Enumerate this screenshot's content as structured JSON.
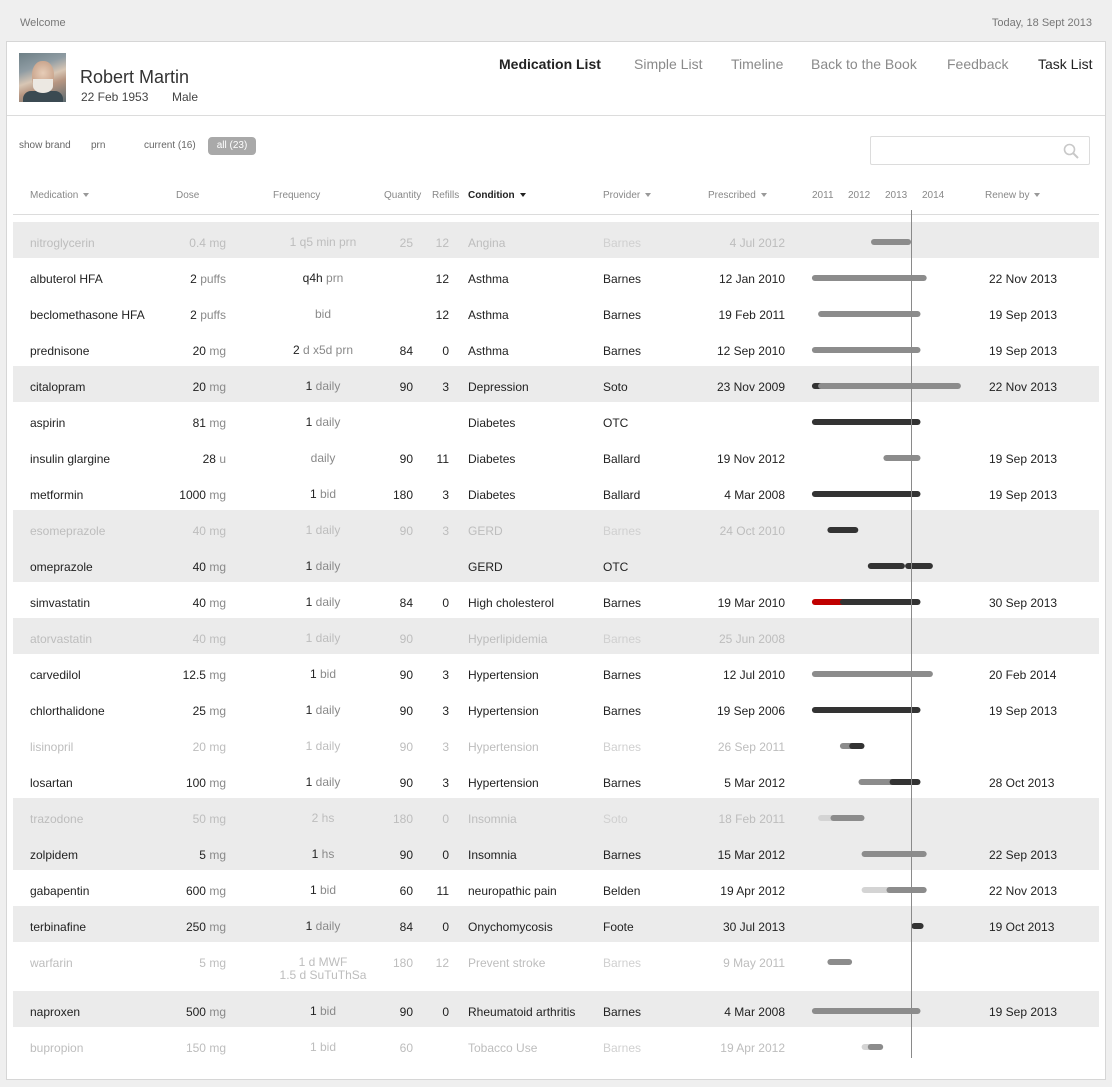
{
  "topbar": {
    "welcome": "Welcome",
    "today": "Today, 18 Sept 2013"
  },
  "patient": {
    "name": "Robert Martin",
    "dob": "22 Feb 1953",
    "sex": "Male"
  },
  "nav": [
    "Medication List",
    "Simple List",
    "Timeline",
    "Back to the Book",
    "Feedback",
    "Task List"
  ],
  "filters": {
    "show_brand": "show brand",
    "prn": "prn",
    "current": "current (16)",
    "all": "all (23)"
  },
  "search": {
    "placeholder": ""
  },
  "columns": {
    "medication": "Medication",
    "dose": "Dose",
    "frequency": "Frequency",
    "quantity": "Quantity",
    "refills": "Refills",
    "condition": "Condition",
    "provider": "Provider",
    "prescribed": "Prescribed",
    "years": [
      "2011",
      "2012",
      "2013",
      "2014"
    ],
    "renew_by": "Renew by"
  },
  "colors": {
    "dark_bar": "#333333",
    "mid_bar": "#8c8c8c",
    "light_bar": "#d4d4d4",
    "alert_bar": "#c00000",
    "row_shade": "#ebebeb"
  },
  "rows": [
    {
      "med": "nitroglycerin",
      "dose": "0.4",
      "unit": "mg",
      "freq_n": "1",
      "freq_t": "q5 min prn",
      "qty": "25",
      "ref": "12",
      "cond": "Angina",
      "prov": "Barnes",
      "presc": "4  Jul  2012",
      "renew": "",
      "inactive": true,
      "shade": true,
      "bars": [
        {
          "s": "2012-07",
          "e": "2013-06",
          "c": "mid"
        }
      ]
    },
    {
      "med": "albuterol HFA",
      "dose": "2",
      "unit": "puffs",
      "freq_n": "q4h",
      "freq_t": "prn",
      "qty": "",
      "ref": "12",
      "cond": "Asthma",
      "prov": "Barnes",
      "presc": "12 Jan 2010",
      "renew": "22 Nov 2013",
      "inactive": false,
      "shade": false,
      "bars": [
        {
          "s": "2010-12",
          "e": "2013-11",
          "c": "mid"
        }
      ]
    },
    {
      "med": "beclomethasone HFA",
      "dose": "2",
      "unit": "puffs",
      "freq_n": "",
      "freq_t": "bid",
      "qty": "",
      "ref": "12",
      "cond": "Asthma",
      "prov": "Barnes",
      "presc": "19 Feb 2011",
      "renew": "19 Sep 2013",
      "inactive": false,
      "shade": false,
      "bars": [
        {
          "s": "2011-02",
          "e": "2013-09",
          "c": "mid"
        }
      ]
    },
    {
      "med": "prednisone",
      "dose": "20",
      "unit": "mg",
      "freq_n": "2",
      "freq_t": "d x5d prn",
      "qty": "84",
      "ref": "0",
      "cond": "Asthma",
      "prov": "Barnes",
      "presc": "12 Sep 2010",
      "renew": "19 Sep 2013",
      "inactive": false,
      "shade": false,
      "bars": [
        {
          "s": "2010-12",
          "e": "2013-09",
          "c": "mid"
        }
      ]
    },
    {
      "med": "citalopram",
      "dose": "20",
      "unit": "mg",
      "freq_n": "1",
      "freq_t": "daily",
      "qty": "90",
      "ref": "3",
      "cond": "Depression",
      "prov": "Soto",
      "presc": "23 Nov 2009",
      "renew": "22 Nov 2013",
      "inactive": false,
      "shade": true,
      "bars": [
        {
          "s": "2010-12",
          "e": "2011-02",
          "c": "dark"
        },
        {
          "s": "2011-02",
          "e": "2014-10",
          "c": "mid"
        }
      ]
    },
    {
      "med": "aspirin",
      "dose": "81",
      "unit": "mg",
      "freq_n": "1",
      "freq_t": "daily",
      "qty": "",
      "ref": "",
      "cond": "Diabetes",
      "prov": "OTC",
      "presc": "",
      "renew": "",
      "inactive": false,
      "shade": false,
      "bars": [
        {
          "s": "2010-12",
          "e": "2013-09",
          "c": "dark"
        }
      ]
    },
    {
      "med": "insulin glargine",
      "dose": "28",
      "unit": "u",
      "freq_n": "",
      "freq_t": "daily",
      "qty": "90",
      "ref": "11",
      "cond": "Diabetes",
      "prov": "Ballard",
      "presc": "19 Nov 2012",
      "renew": "19 Sep 2013",
      "inactive": false,
      "shade": false,
      "bars": [
        {
          "s": "2012-11",
          "e": "2013-09",
          "c": "mid"
        }
      ]
    },
    {
      "med": "metformin",
      "dose": "1000",
      "unit": "mg",
      "freq_n": "1",
      "freq_t": "bid",
      "qty": "180",
      "ref": "3",
      "cond": "Diabetes",
      "prov": "Ballard",
      "presc": "4  Mar 2008",
      "renew": "19 Sep 2013",
      "inactive": false,
      "shade": false,
      "bars": [
        {
          "s": "2010-12",
          "e": "2013-09",
          "c": "dark"
        }
      ]
    },
    {
      "med": "esomeprazole",
      "dose": "40",
      "unit": "mg",
      "freq_n": "1",
      "freq_t": "daily",
      "qty": "90",
      "ref": "3",
      "cond": "GERD",
      "prov": "Barnes",
      "presc": "24  Oct  2010",
      "renew": "",
      "inactive": true,
      "shade": true,
      "bars": [
        {
          "s": "2011-05",
          "e": "2012-01",
          "c": "dark"
        }
      ]
    },
    {
      "med": "omeprazole",
      "dose": "40",
      "unit": "mg",
      "freq_n": "1",
      "freq_t": "daily",
      "qty": "",
      "ref": "",
      "cond": "GERD",
      "prov": "OTC",
      "presc": "",
      "renew": "",
      "inactive": false,
      "shade": true,
      "bars": [
        {
          "s": "2012-06",
          "e": "2013-04",
          "c": "dark"
        },
        {
          "s": "2013-06",
          "e": "2014-01",
          "c": "dark"
        }
      ]
    },
    {
      "med": "simvastatin",
      "dose": "40",
      "unit": "mg",
      "freq_n": "1",
      "freq_t": "daily",
      "qty": "84",
      "ref": "0",
      "cond": "High cholesterol",
      "prov": "Barnes",
      "presc": "19 Mar 2010",
      "renew": "30 Sep 2013",
      "inactive": false,
      "shade": false,
      "bars": [
        {
          "s": "2010-12",
          "e": "2011-09",
          "c": "alert"
        },
        {
          "s": "2011-09",
          "e": "2013-09",
          "c": "dark"
        }
      ]
    },
    {
      "med": "atorvastatin",
      "dose": "40",
      "unit": "mg",
      "freq_n": "1",
      "freq_t": "daily",
      "qty": "90",
      "ref": "",
      "cond": "Hyperlipidemia",
      "prov": "Barnes",
      "presc": "25 Jun 2008",
      "renew": "",
      "inactive": true,
      "shade": true,
      "bars": []
    },
    {
      "med": "carvedilol",
      "dose": "12.5",
      "unit": "mg",
      "freq_n": "1",
      "freq_t": "bid",
      "qty": "90",
      "ref": "3",
      "cond": "Hypertension",
      "prov": "Barnes",
      "presc": "12  Jul  2010",
      "renew": "20 Feb 2014",
      "inactive": false,
      "shade": false,
      "bars": [
        {
          "s": "2010-12",
          "e": "2014-01",
          "c": "mid"
        }
      ]
    },
    {
      "med": "chlorthalidone",
      "dose": "25",
      "unit": "mg",
      "freq_n": "1",
      "freq_t": "daily",
      "qty": "90",
      "ref": "3",
      "cond": "Hypertension",
      "prov": "Barnes",
      "presc": "19 Sep 2006",
      "renew": "19 Sep 2013",
      "inactive": false,
      "shade": false,
      "bars": [
        {
          "s": "2010-12",
          "e": "2013-09",
          "c": "dark"
        }
      ]
    },
    {
      "med": "lisinopril",
      "dose": "20",
      "unit": "mg",
      "freq_n": "1",
      "freq_t": "daily",
      "qty": "90",
      "ref": "3",
      "cond": "Hypertension",
      "prov": "Barnes",
      "presc": "26  Sep 2011",
      "renew": "",
      "inactive": true,
      "shade": false,
      "bars": [
        {
          "s": "2011-09",
          "e": "2011-12",
          "c": "mid"
        },
        {
          "s": "2011-12",
          "e": "2012-03",
          "c": "dark"
        }
      ]
    },
    {
      "med": "losartan",
      "dose": "100",
      "unit": "mg",
      "freq_n": "1",
      "freq_t": "daily",
      "qty": "90",
      "ref": "3",
      "cond": "Hypertension",
      "prov": "Barnes",
      "presc": "5  Mar 2012",
      "renew": "28  Oct  2013",
      "inactive": false,
      "shade": false,
      "bars": [
        {
          "s": "2012-03",
          "e": "2013-01",
          "c": "mid"
        },
        {
          "s": "2013-01",
          "e": "2013-09",
          "c": "dark"
        }
      ]
    },
    {
      "med": "trazodone",
      "dose": "50",
      "unit": "mg",
      "freq_n": "2",
      "freq_t": "hs",
      "qty": "180",
      "ref": "0",
      "cond": "Insomnia",
      "prov": "Soto",
      "presc": "18 Feb 2011",
      "renew": "",
      "inactive": true,
      "shade": true,
      "bars": [
        {
          "s": "2011-02",
          "e": "2011-06",
          "c": "light"
        },
        {
          "s": "2011-06",
          "e": "2011-09",
          "c": "mid"
        },
        {
          "s": "2011-09",
          "e": "2012-03",
          "c": "mid"
        }
      ]
    },
    {
      "med": "zolpidem",
      "dose": "5",
      "unit": "mg",
      "freq_n": "1",
      "freq_t": "hs",
      "qty": "90",
      "ref": "0",
      "cond": "Insomnia",
      "prov": "Barnes",
      "presc": "15 Mar 2012",
      "renew": "22 Sep 2013",
      "inactive": false,
      "shade": true,
      "bars": [
        {
          "s": "2012-04",
          "e": "2013-11",
          "c": "mid"
        }
      ]
    },
    {
      "med": "gabapentin",
      "dose": "600",
      "unit": "mg",
      "freq_n": "1",
      "freq_t": "bid",
      "qty": "60",
      "ref": "11",
      "cond": "neuropathic pain",
      "prov": "Belden",
      "presc": "19  Apr  2012",
      "renew": "22 Nov 2013",
      "inactive": false,
      "shade": false,
      "bars": [
        {
          "s": "2012-04",
          "e": "2012-09",
          "c": "light"
        },
        {
          "s": "2012-09",
          "e": "2012-12",
          "c": "light"
        },
        {
          "s": "2012-12",
          "e": "2013-11",
          "c": "mid"
        }
      ]
    },
    {
      "med": "terbinafine",
      "dose": "250",
      "unit": "mg",
      "freq_n": "1",
      "freq_t": "daily",
      "qty": "84",
      "ref": "0",
      "cond": "Onychomycosis",
      "prov": "Foote",
      "presc": "30  Jul  2013",
      "renew": "19  Oct  2013",
      "inactive": false,
      "shade": true,
      "bars": [
        {
          "s": "2013-08",
          "e": "2013-10",
          "c": "dark"
        }
      ]
    },
    {
      "med": "warfarin",
      "dose": "5",
      "unit": "mg",
      "freq_n": "1",
      "freq_t": "d MWF",
      "freq_n2": "1.5",
      "freq_t2": "d SuTuThSa",
      "qty": "180",
      "ref": "12",
      "cond": "Prevent stroke",
      "prov": "Barnes",
      "presc": "9  May  2011",
      "renew": "",
      "inactive": true,
      "shade": false,
      "bars": [
        {
          "s": "2011-05",
          "e": "2011-11",
          "c": "mid"
        }
      ]
    },
    {
      "med": "naproxen",
      "dose": "500",
      "unit": "mg",
      "freq_n": "1",
      "freq_t": "bid",
      "qty": "90",
      "ref": "0",
      "cond": "Rheumatoid arthritis",
      "prov": "Barnes",
      "presc": "4  Mar 2008",
      "renew": "19 Sep 2013",
      "inactive": false,
      "shade": true,
      "bars": [
        {
          "s": "2010-12",
          "e": "2013-09",
          "c": "mid"
        }
      ]
    },
    {
      "med": "bupropion",
      "dose": "150",
      "unit": "mg",
      "freq_n": "1",
      "freq_t": "bid",
      "qty": "60",
      "ref": "",
      "cond": "Tobacco Use",
      "prov": "Barnes",
      "presc": "19  Apr  2012",
      "renew": "",
      "inactive": true,
      "shade": false,
      "bars": [
        {
          "s": "2012-04",
          "e": "2012-06",
          "c": "light"
        },
        {
          "s": "2012-06",
          "e": "2012-09",
          "c": "mid"
        }
      ]
    }
  ]
}
